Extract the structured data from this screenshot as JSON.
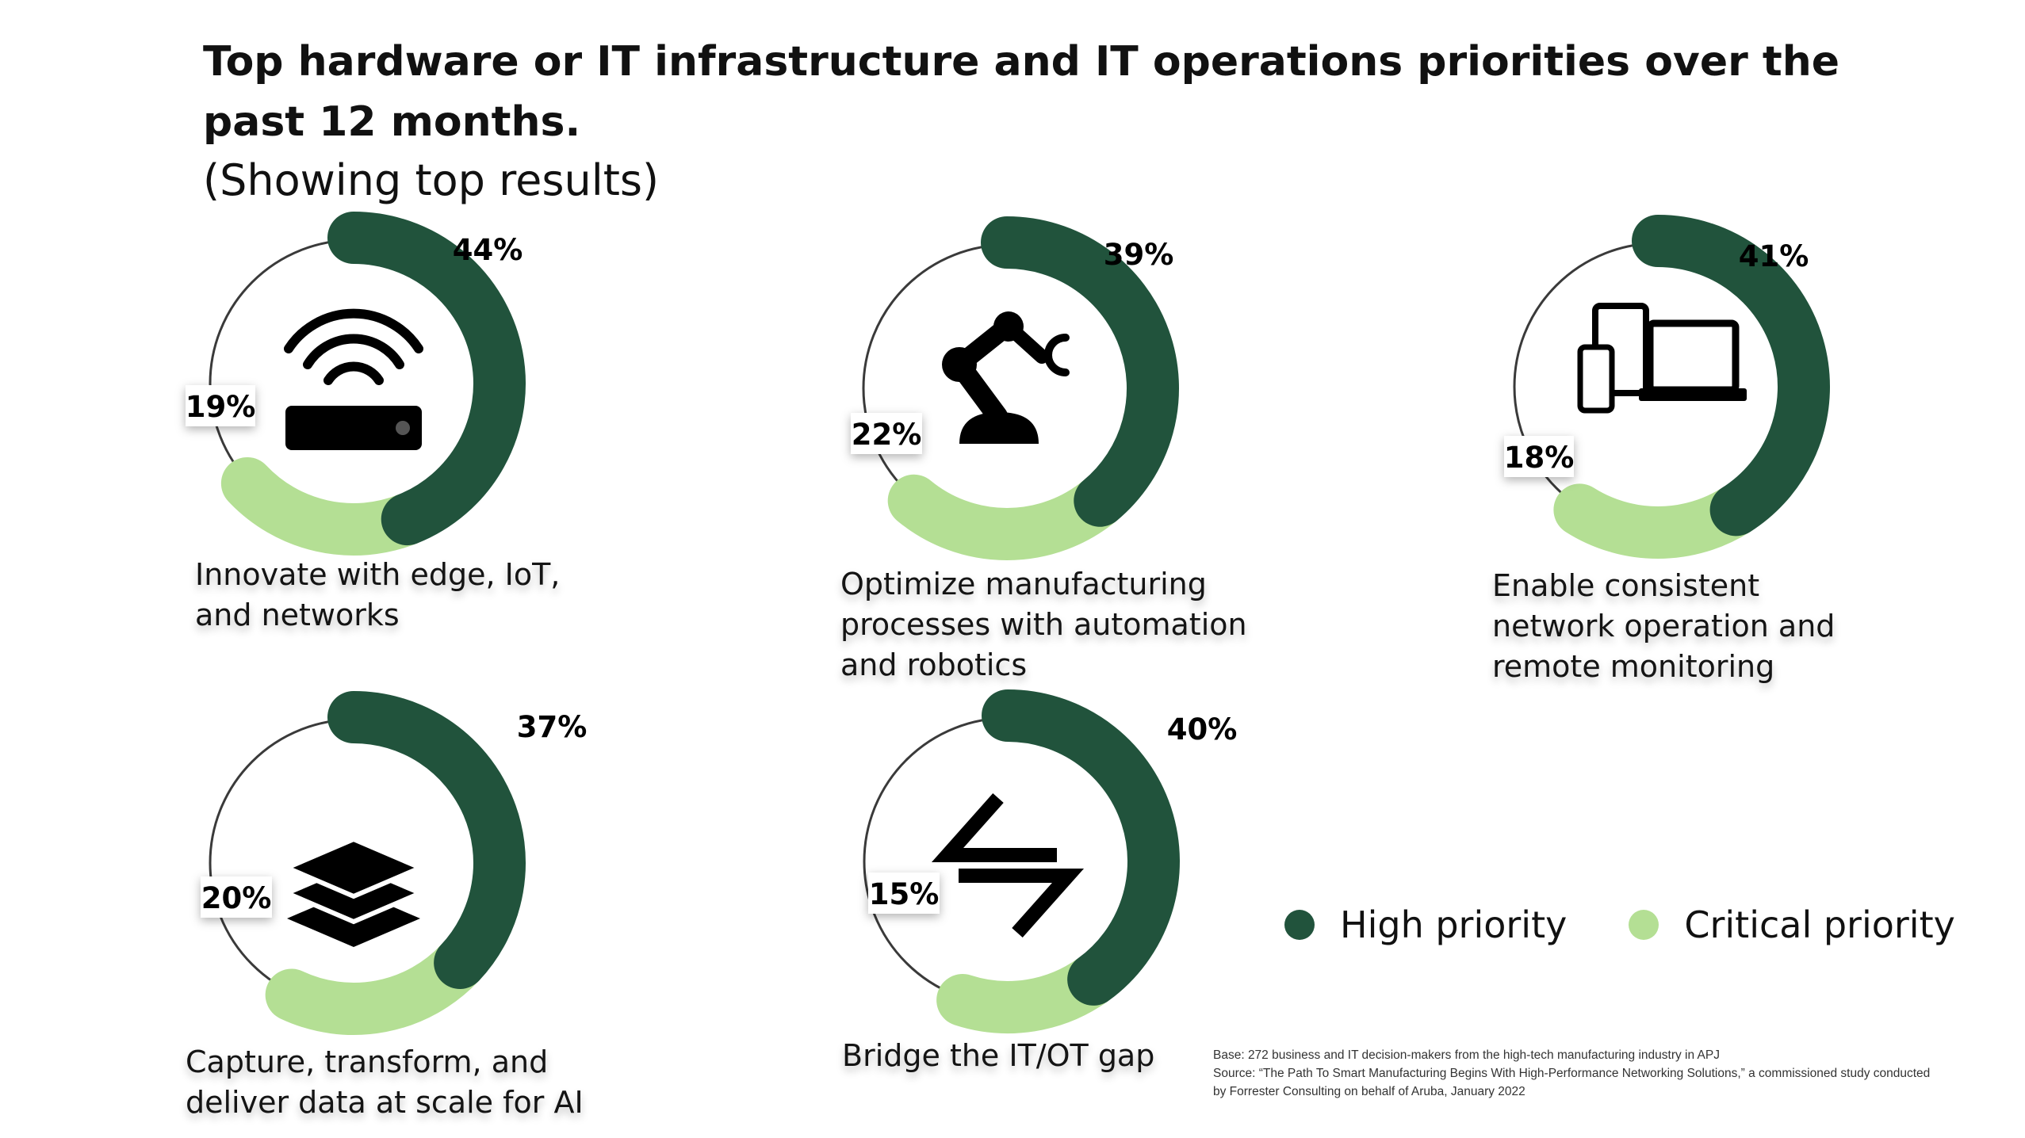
{
  "title": "Top hardware or IT infrastructure and IT operations priorities over the past 12 months.",
  "subtitle": "(Showing top results)",
  "colors": {
    "high": "#21533c",
    "critical": "#b4df94",
    "ring": "#3a3a3a"
  },
  "legend": {
    "high_label": "High priority",
    "critical_label": "Critical priority"
  },
  "chart_data": {
    "type": "donut",
    "series": [
      {
        "name": "High priority"
      },
      {
        "name": "Critical priority"
      }
    ],
    "items": [
      {
        "label": "Innovate with edge, IoT, and networks",
        "high": 44,
        "critical": 19,
        "high_text": "44%",
        "critical_text": "19%",
        "icon": "wifi-router-icon"
      },
      {
        "label": "Optimize manufacturing processes with automation and robotics",
        "high": 39,
        "critical": 22,
        "high_text": "39%",
        "critical_text": "22%",
        "icon": "robot-arm-icon"
      },
      {
        "label": "Enable consistent network operation and remote monitoring",
        "high": 41,
        "critical": 18,
        "high_text": "41%",
        "critical_text": "18%",
        "icon": "devices-icon"
      },
      {
        "label": "Capture, transform, and deliver data at scale for AI",
        "high": 37,
        "critical": 20,
        "high_text": "37%",
        "critical_text": "20%",
        "icon": "layers-icon"
      },
      {
        "label": "Bridge the IT/OT gap",
        "high": 40,
        "critical": 15,
        "high_text": "40%",
        "critical_text": "15%",
        "icon": "exchange-arrows-icon"
      }
    ]
  },
  "source": {
    "base": "Base: 272 business and IT decision-makers from the high-tech manufacturing industry in APJ",
    "line1": "Source: “The Path To Smart Manufacturing Begins With High-Performance Networking Solutions,” a commissioned study conducted",
    "line2": "by Forrester Consulting on behalf of Aruba, January 2022"
  }
}
